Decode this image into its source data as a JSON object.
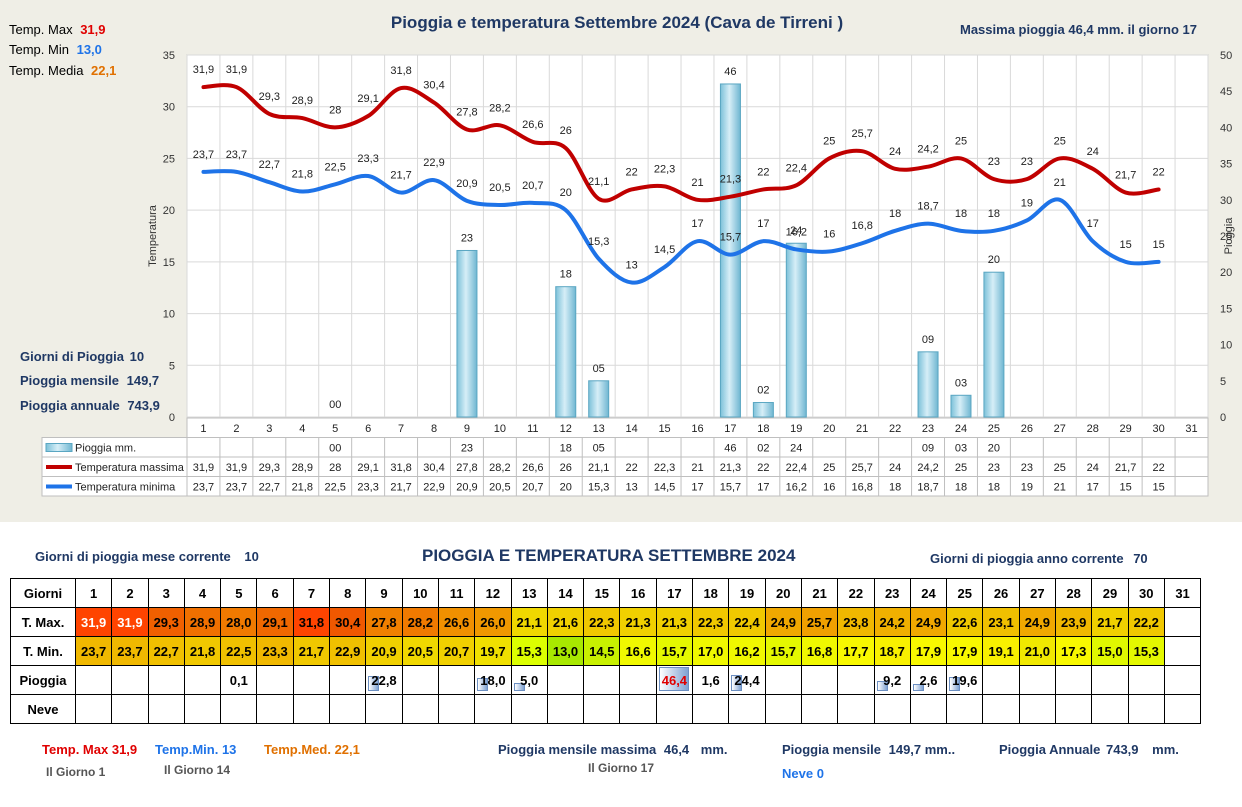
{
  "chart_data": {
    "type": "line",
    "title": "Pioggia e temperatura Settembre 2024 (Cava de Tirreni )",
    "ylabel_left": "Temperatura",
    "ylabel_right": "Pioggia",
    "ylim_left": [
      0,
      35
    ],
    "ylim_right": [
      0,
      50
    ],
    "yticks_left": [
      0,
      5,
      10,
      15,
      20,
      25,
      30,
      35
    ],
    "yticks_right": [
      0,
      5,
      10,
      15,
      20,
      25,
      30,
      35,
      40,
      45,
      50
    ],
    "grid": true,
    "categories": [
      "1",
      "2",
      "3",
      "4",
      "5",
      "6",
      "7",
      "8",
      "9",
      "10",
      "11",
      "12",
      "13",
      "14",
      "15",
      "16",
      "17",
      "18",
      "19",
      "20",
      "21",
      "22",
      "23",
      "24",
      "25",
      "26",
      "27",
      "28",
      "29",
      "30",
      "31"
    ],
    "series": [
      {
        "name": "Pioggia mm.",
        "type": "bar",
        "axis": "right",
        "color": "#9fd4e8",
        "values": [
          null,
          null,
          null,
          null,
          0,
          null,
          null,
          null,
          23,
          null,
          null,
          18,
          5,
          null,
          null,
          null,
          46,
          2,
          24,
          null,
          null,
          null,
          9,
          3,
          20,
          null,
          null,
          null,
          null,
          null,
          null
        ],
        "labels": [
          "",
          "",
          "",
          "",
          "00",
          "",
          "",
          "",
          "23",
          "",
          "",
          "18",
          "05",
          "",
          "",
          "",
          "46",
          "02",
          "24",
          "",
          "",
          "",
          "09",
          "03",
          "20",
          "",
          "",
          "",
          "",
          "",
          ""
        ]
      },
      {
        "name": "Temperatura massima",
        "type": "line",
        "axis": "left",
        "color": "#c00000",
        "values": [
          31.9,
          31.9,
          29.3,
          28.9,
          28,
          29.1,
          31.8,
          30.4,
          27.8,
          28.2,
          26.6,
          26,
          21.1,
          22,
          22.3,
          21,
          21.3,
          22,
          22.4,
          25,
          25.7,
          24,
          24.2,
          25,
          23,
          23,
          25,
          24,
          21.7,
          22,
          null
        ],
        "labels": [
          "31,9",
          "31,9",
          "29,3",
          "28,9",
          "28",
          "29,1",
          "31,8",
          "30,4",
          "27,8",
          "28,2",
          "26,6",
          "26",
          "21,1",
          "22",
          "22,3",
          "21",
          "21,3",
          "22",
          "22,4",
          "25",
          "25,7",
          "24",
          "24,2",
          "25",
          "23",
          "23",
          "25",
          "24",
          "21,7",
          "22",
          ""
        ]
      },
      {
        "name": "Temperatura minima",
        "type": "line",
        "axis": "left",
        "color": "#1e73e8",
        "values": [
          23.7,
          23.7,
          22.7,
          21.8,
          22.5,
          23.3,
          21.7,
          22.9,
          20.9,
          20.5,
          20.7,
          20,
          15.3,
          13,
          14.5,
          17,
          15.7,
          17,
          16.2,
          16,
          16.8,
          18,
          18.7,
          18,
          18,
          19,
          21,
          17,
          15,
          15,
          null
        ],
        "labels": [
          "23,7",
          "23,7",
          "22,7",
          "21,8",
          "22,5",
          "23,3",
          "21,7",
          "22,9",
          "20,9",
          "20,5",
          "20,7",
          "20",
          "15,3",
          "13",
          "14,5",
          "17",
          "15,7",
          "17",
          "16,2",
          "16",
          "16,8",
          "18",
          "18,7",
          "18",
          "18",
          "19",
          "21",
          "17",
          "15",
          "15",
          ""
        ]
      }
    ]
  },
  "summary_top": {
    "tmax_label": "Temp. Max",
    "tmax_value": "31,9",
    "tmin_label": "Temp. Min",
    "tmin_value": "13,0",
    "tmed_label": "Temp. Media",
    "tmed_value": "22,1",
    "max_rain_text": "Massima pioggia  46,4 mm. il giorno  17",
    "rain_days_label": "Giorni di Pioggia",
    "rain_days_value": "10",
    "rain_month_label": "Pioggia mensile",
    "rain_month_value": "149,7",
    "rain_year_label": "Pioggia annuale",
    "rain_year_value": "743,9"
  },
  "table": {
    "title": "PIOGGIA E TEMPERATURA SETTEMBRE 2024",
    "rain_days_month_label": "Giorni di pioggia mese corrente",
    "rain_days_month_value": "10",
    "rain_days_year_label": "Giorni di pioggia anno corrente",
    "rain_days_year_value": "70",
    "row_labels": [
      "Giorni",
      "T. Max.",
      "T. Min.",
      "Pioggia",
      "Neve"
    ],
    "days": [
      "1",
      "2",
      "3",
      "4",
      "5",
      "6",
      "7",
      "8",
      "9",
      "10",
      "11",
      "12",
      "13",
      "14",
      "15",
      "16",
      "17",
      "18",
      "19",
      "20",
      "21",
      "22",
      "23",
      "24",
      "25",
      "26",
      "27",
      "28",
      "29",
      "30",
      "31"
    ],
    "tmax": [
      "31,9",
      "31,9",
      "29,3",
      "28,9",
      "28,0",
      "29,1",
      "31,8",
      "30,4",
      "27,8",
      "28,2",
      "26,6",
      "26,0",
      "21,1",
      "21,6",
      "22,3",
      "21,3",
      "21,3",
      "22,3",
      "22,4",
      "24,9",
      "25,7",
      "23,8",
      "24,2",
      "24,9",
      "22,6",
      "23,1",
      "24,9",
      "23,9",
      "21,7",
      "22,2",
      ""
    ],
    "tmin": [
      "23,7",
      "23,7",
      "22,7",
      "21,8",
      "22,5",
      "23,3",
      "21,7",
      "22,9",
      "20,9",
      "20,5",
      "20,7",
      "19,7",
      "15,3",
      "13,0",
      "14,5",
      "16,6",
      "15,7",
      "17,0",
      "16,2",
      "15,7",
      "16,8",
      "17,7",
      "18,7",
      "17,9",
      "17,9",
      "19,1",
      "21,0",
      "17,3",
      "15,0",
      "15,3",
      ""
    ],
    "rain": [
      "",
      "",
      "",
      "",
      "0,1",
      "",
      "",
      "",
      "22,8",
      "",
      "",
      "18,0",
      "5,0",
      "",
      "",
      "",
      "46,4",
      "1,6",
      "24,4",
      "",
      "",
      "",
      "9,2",
      "2,6",
      "19,6",
      "",
      "",
      "",
      "",
      "",
      ""
    ],
    "rain_fraction": [
      0,
      0,
      0,
      0,
      0.01,
      0,
      0,
      0,
      0.49,
      0,
      0,
      0.39,
      0.11,
      0,
      0,
      0,
      1.0,
      0.03,
      0.53,
      0,
      0,
      0,
      0.2,
      0.06,
      0.42,
      0,
      0,
      0,
      0,
      0,
      0
    ],
    "neve": [
      "",
      "",
      "",
      "",
      "",
      "",
      "",
      "",
      "",
      "",
      "",
      "",
      "",
      "",
      "",
      "",
      "",
      "",
      "",
      "",
      "",
      "",
      "",
      "",
      "",
      "",
      "",
      "",
      "",
      "",
      ""
    ],
    "colors": {
      "tmax": [
        "#ff4400",
        "#ff4400",
        "#f06000",
        "#f07000",
        "#f07a00",
        "#f06800",
        "#ff4400",
        "#f05800",
        "#f08000",
        "#f07a00",
        "#f09000",
        "#f09800",
        "#f0d800",
        "#f0d000",
        "#f0c800",
        "#f0d000",
        "#f0d000",
        "#f0c800",
        "#f0c800",
        "#f0a800",
        "#f0a000",
        "#f0b800",
        "#f0b000",
        "#f0a800",
        "#f0c800",
        "#f0c000",
        "#f0a800",
        "#f0b800",
        "#f0d000",
        "#f0c800",
        "#ffffff"
      ],
      "tmin": [
        "#f0b800",
        "#f0b800",
        "#f0c000",
        "#f0c800",
        "#f0c000",
        "#f0b800",
        "#f0c800",
        "#f0c000",
        "#f0d000",
        "#f0d800",
        "#f0d000",
        "#f0e000",
        "#dcff00",
        "#a8e800",
        "#c8f000",
        "#f0f800",
        "#e4f800",
        "#f0f800",
        "#f0f800",
        "#e4f800",
        "#f0f800",
        "#f8f800",
        "#f8f000",
        "#f8f800",
        "#f8f800",
        "#f8f000",
        "#f0e800",
        "#f8f800",
        "#e0f800",
        "#e4f800",
        "#ffffff"
      ]
    }
  },
  "footer": {
    "tmax_label": "Temp. Max",
    "tmax_value": "31,9",
    "tmax_day": "Il Giorno  1",
    "tmin_label": "Temp.Min.",
    "tmin_value": "13",
    "tmin_day": "Il Giorno 14",
    "tmed_label": "Temp.Med.",
    "tmed_value": "22,1",
    "max_rain_label": "Pioggia mensile massima",
    "max_rain_value": "46,4",
    "max_rain_unit": "mm.",
    "max_rain_day": "Il Giorno 17",
    "rain_month_label": "Pioggia mensile",
    "rain_month_value": "149,7 mm..",
    "neve_label": "Neve",
    "neve_value": "0",
    "rain_year_label": "Pioggia Annuale",
    "rain_year_value": "743,9",
    "rain_year_unit": "mm."
  }
}
